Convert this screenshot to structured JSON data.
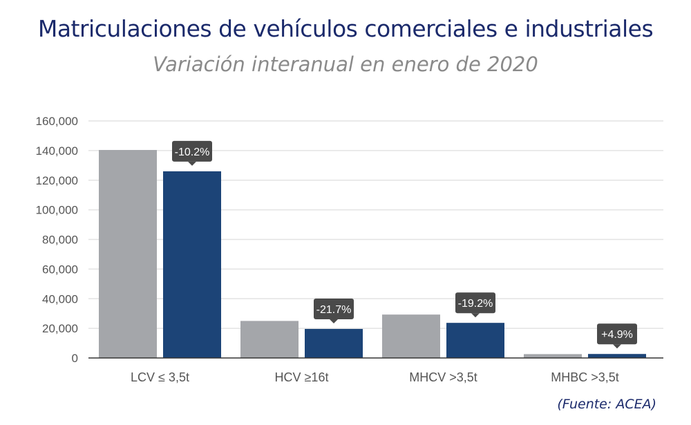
{
  "title": "Matriculaciones de vehículos comerciales e industriales",
  "subtitle": "Variación interanual en enero de 2020",
  "source": "(Fuente: ACEA)",
  "chart_data": {
    "type": "bar",
    "categories": [
      "LCV ≤ 3,5t",
      "HCV ≥16t",
      "MHCV >3,5t",
      "MHBC >3,5t"
    ],
    "series": [
      {
        "values": [
          140400,
          25000,
          29300,
          2600
        ],
        "color": "#a4a6aa"
      },
      {
        "values": [
          126000,
          19600,
          23700,
          2700
        ],
        "color": "#1c4477"
      }
    ],
    "annotations": [
      "-10.2%",
      "-21.7%",
      "-19.2%",
      "+4.9%"
    ],
    "annotation_color": "#4a4a4a",
    "ylim": [
      0,
      160000
    ],
    "yticks": [
      "0",
      "20,000",
      "40,000",
      "60,000",
      "80,000",
      "100,000",
      "120,000",
      "140,000",
      "160,000"
    ],
    "grid": true
  }
}
